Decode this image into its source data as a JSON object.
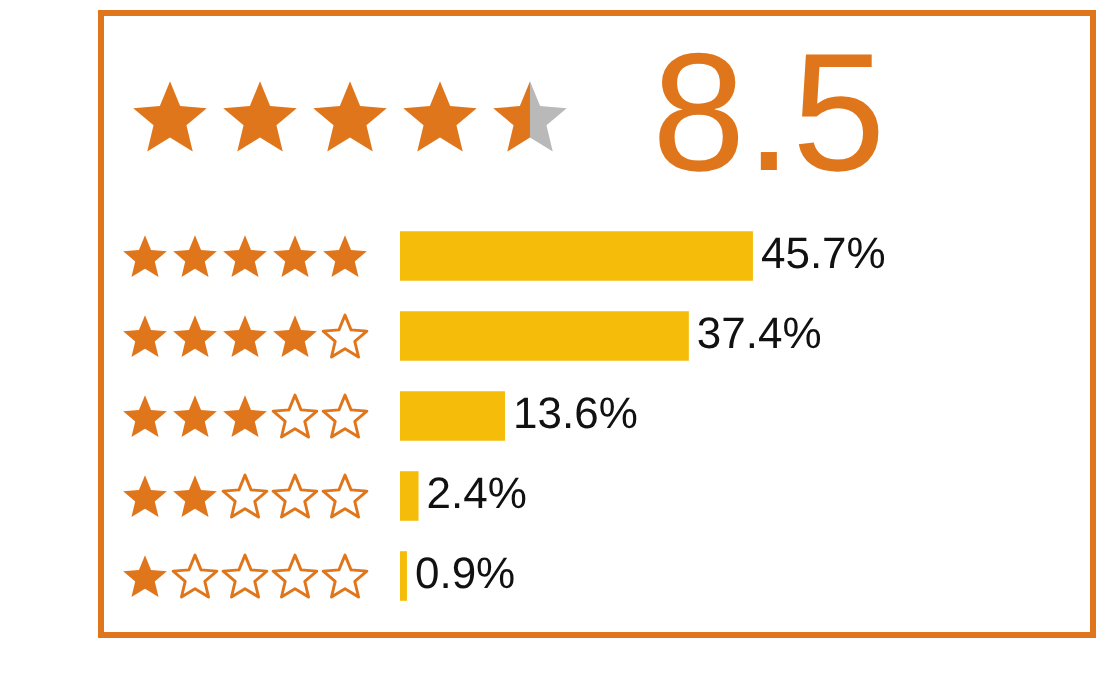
{
  "chart_data": {
    "type": "bar",
    "orientation": "horizontal",
    "title": "8.5",
    "categories": [
      null,
      null,
      null,
      null,
      null
    ],
    "values": [
      45.7,
      37.4,
      13.6,
      2.4,
      0.9
    ],
    "value_labels": [
      "45.7%",
      "37.4%",
      "13.6%",
      "2.4%",
      "0.9%"
    ],
    "color": "#f5bd0a"
  }
}
